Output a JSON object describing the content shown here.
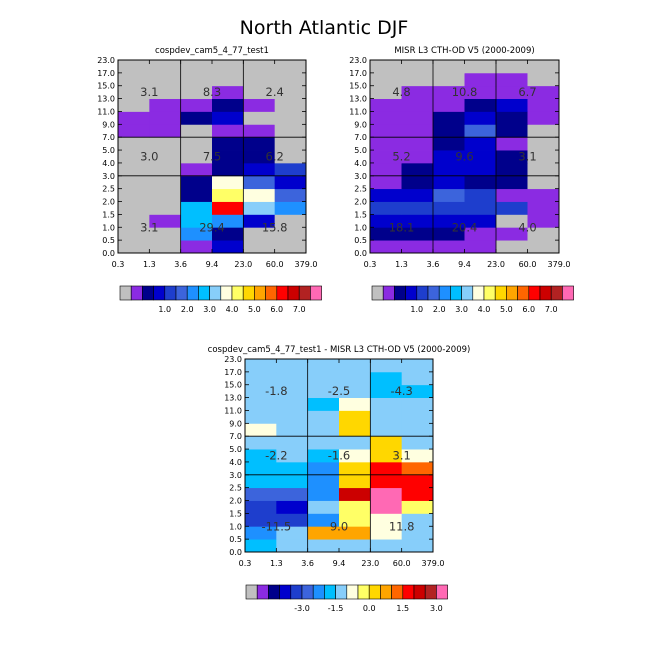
{
  "title": "North Atlantic DJF",
  "chart_data": [
    {
      "type": "heatmap",
      "title": "cospdev_cam5_4_77_test1",
      "x_ticks": [
        "0.3",
        "1.3",
        "3.6",
        "9.4",
        "23.0",
        "60.0",
        "379.0"
      ],
      "y_ticks": [
        "0.0",
        "0.5",
        "1.0",
        "1.5",
        "2.0",
        "2.5",
        "3.0",
        "4.0",
        "5.0",
        "7.0",
        "9.0",
        "11.0",
        "13.0",
        "15.0",
        "17.0",
        "23.0"
      ],
      "color_levels": [
        "1.0",
        "2.0",
        "3.0",
        "4.0",
        "5.0",
        "6.0",
        "7.0"
      ],
      "palette": [
        "#c0c0c0",
        "#8b2be2",
        "#00008b",
        "#0000cd",
        "#1e3ecd",
        "#3c64dc",
        "#1e90ff",
        "#00bfff",
        "#87cefa",
        "#ffffe0",
        "#ffff66",
        "#ffd700",
        "#ffa500",
        "#ff6600",
        "#ff0000",
        "#cc0000",
        "#b22222",
        "#ff69b4"
      ],
      "values": [
        [
          0,
          0,
          1,
          3,
          0,
          0
        ],
        [
          0,
          0,
          6,
          2,
          0,
          0
        ],
        [
          0,
          1,
          7,
          6,
          3,
          0
        ],
        [
          0,
          0,
          7,
          14,
          8,
          6
        ],
        [
          0,
          0,
          2,
          10,
          9,
          5
        ],
        [
          0,
          0,
          2,
          9,
          5,
          3
        ],
        [
          0,
          0,
          1,
          2,
          3,
          4
        ],
        [
          0,
          0,
          0,
          2,
          2,
          0
        ],
        [
          0,
          0,
          0,
          2,
          2,
          0
        ],
        [
          1,
          1,
          0,
          1,
          1,
          0
        ],
        [
          1,
          1,
          2,
          3,
          0,
          0
        ],
        [
          0,
          1,
          1,
          2,
          1,
          0
        ],
        [
          0,
          0,
          0,
          1,
          0,
          0
        ],
        [
          0,
          0,
          0,
          0,
          0,
          0
        ],
        [
          0,
          0,
          0,
          0,
          0,
          0
        ]
      ],
      "region_labels": [
        {
          "row": "high",
          "col": "low",
          "text": "3.1"
        },
        {
          "row": "high",
          "col": "mid",
          "text": "8.3"
        },
        {
          "row": "high",
          "col": "high",
          "text": "2.4"
        },
        {
          "row": "mid",
          "col": "low",
          "text": "3.0"
        },
        {
          "row": "mid",
          "col": "mid",
          "text": "7.5"
        },
        {
          "row": "mid",
          "col": "high",
          "text": "6.2"
        },
        {
          "row": "low",
          "col": "low",
          "text": "3.1"
        },
        {
          "row": "low",
          "col": "mid",
          "text": "29.4"
        },
        {
          "row": "low",
          "col": "high",
          "text": "15.8"
        }
      ]
    },
    {
      "type": "heatmap",
      "title": "MISR L3 CTH-OD V5 (2000-2009)",
      "x_ticks": [
        "0.3",
        "1.3",
        "3.6",
        "9.4",
        "23.0",
        "60.0",
        "379.0"
      ],
      "y_ticks": [
        "0.0",
        "0.5",
        "1.0",
        "1.5",
        "2.0",
        "2.5",
        "3.0",
        "4.0",
        "5.0",
        "7.0",
        "9.0",
        "11.0",
        "13.0",
        "15.0",
        "17.0",
        "23.0"
      ],
      "color_levels": [
        "1.0",
        "2.0",
        "3.0",
        "4.0",
        "5.0",
        "6.0",
        "7.0"
      ],
      "palette": [
        "#c0c0c0",
        "#8b2be2",
        "#00008b",
        "#0000cd",
        "#1e3ecd",
        "#3c64dc",
        "#1e90ff",
        "#00bfff",
        "#87cefa",
        "#ffffe0",
        "#ffff66",
        "#ffd700",
        "#ffa500",
        "#ff6600",
        "#ff0000",
        "#cc0000",
        "#b22222",
        "#ff69b4"
      ],
      "values": [
        [
          1,
          1,
          1,
          1,
          0,
          0
        ],
        [
          2,
          2,
          2,
          1,
          1,
          0
        ],
        [
          3,
          3,
          3,
          3,
          0,
          1
        ],
        [
          4,
          4,
          4,
          4,
          4,
          1
        ],
        [
          3,
          3,
          5,
          4,
          1,
          1
        ],
        [
          1,
          2,
          3,
          2,
          2,
          0
        ],
        [
          1,
          2,
          3,
          3,
          2,
          0
        ],
        [
          1,
          1,
          3,
          3,
          2,
          0
        ],
        [
          1,
          1,
          2,
          3,
          1,
          0
        ],
        [
          1,
          1,
          2,
          5,
          2,
          0
        ],
        [
          1,
          1,
          2,
          3,
          2,
          1
        ],
        [
          1,
          1,
          1,
          2,
          3,
          1
        ],
        [
          0,
          1,
          1,
          1,
          1,
          1
        ],
        [
          0,
          0,
          0,
          1,
          1,
          0
        ],
        [
          0,
          0,
          0,
          0,
          0,
          0
        ]
      ],
      "region_labels": [
        {
          "row": "high",
          "col": "low",
          "text": "4.8"
        },
        {
          "row": "high",
          "col": "mid",
          "text": "10.8"
        },
        {
          "row": "high",
          "col": "high",
          "text": "6.7"
        },
        {
          "row": "mid",
          "col": "low",
          "text": "5.2"
        },
        {
          "row": "mid",
          "col": "mid",
          "text": "9.6"
        },
        {
          "row": "mid",
          "col": "high",
          "text": "3.1"
        },
        {
          "row": "low",
          "col": "low",
          "text": "18.1"
        },
        {
          "row": "low",
          "col": "mid",
          "text": "20.4"
        },
        {
          "row": "low",
          "col": "high",
          "text": "4.0"
        }
      ]
    },
    {
      "type": "heatmap",
      "title": "cospdev_cam5_4_77_test1 - MISR L3 CTH-OD V5 (2000-2009)",
      "x_ticks": [
        "0.3",
        "1.3",
        "3.6",
        "9.4",
        "23.0",
        "60.0",
        "379.0"
      ],
      "y_ticks": [
        "0.0",
        "0.5",
        "1.0",
        "1.5",
        "2.0",
        "2.5",
        "3.0",
        "4.0",
        "5.0",
        "7.0",
        "9.0",
        "11.0",
        "13.0",
        "15.0",
        "17.0",
        "23.0"
      ],
      "color_levels": [
        "-3.0",
        "-1.5",
        "0.0",
        "1.5",
        "3.0"
      ],
      "palette": [
        "#c0c0c0",
        "#8b2be2",
        "#00008b",
        "#0000cd",
        "#1e3ecd",
        "#3c64dc",
        "#1e90ff",
        "#00bfff",
        "#87cefa",
        "#ffffe0",
        "#ffff66",
        "#ffd700",
        "#ffa500",
        "#ff6600",
        "#ff0000",
        "#cc0000",
        "#b22222",
        "#ff69b4"
      ],
      "values": [
        [
          7,
          8,
          8,
          8,
          8,
          8
        ],
        [
          6,
          8,
          12,
          12,
          9,
          8
        ],
        [
          4,
          4,
          6,
          10,
          9,
          8
        ],
        [
          4,
          3,
          8,
          10,
          17,
          10
        ],
        [
          5,
          5,
          6,
          15,
          17,
          14
        ],
        [
          7,
          7,
          6,
          11,
          14,
          14
        ],
        [
          7,
          7,
          6,
          11,
          14,
          13
        ],
        [
          7,
          8,
          7,
          9,
          11,
          9
        ],
        [
          8,
          8,
          8,
          8,
          11,
          8
        ],
        [
          9,
          8,
          8,
          11,
          8,
          8
        ],
        [
          8,
          8,
          8,
          11,
          8,
          8
        ],
        [
          8,
          8,
          7,
          9,
          8,
          8
        ],
        [
          8,
          8,
          8,
          8,
          7,
          7
        ],
        [
          8,
          8,
          8,
          8,
          7,
          8
        ],
        [
          8,
          8,
          8,
          8,
          8,
          8
        ]
      ],
      "region_labels": [
        {
          "row": "high",
          "col": "low",
          "text": "-1.8"
        },
        {
          "row": "high",
          "col": "mid",
          "text": "-2.5"
        },
        {
          "row": "high",
          "col": "high",
          "text": "-4.3"
        },
        {
          "row": "mid",
          "col": "low",
          "text": "-2.2"
        },
        {
          "row": "mid",
          "col": "mid",
          "text": "-1.6"
        },
        {
          "row": "mid",
          "col": "high",
          "text": "3.1"
        },
        {
          "row": "low",
          "col": "low",
          "text": "-11.5"
        },
        {
          "row": "low",
          "col": "mid",
          "text": "9.0"
        },
        {
          "row": "low",
          "col": "high",
          "text": "11.8"
        }
      ]
    }
  ]
}
